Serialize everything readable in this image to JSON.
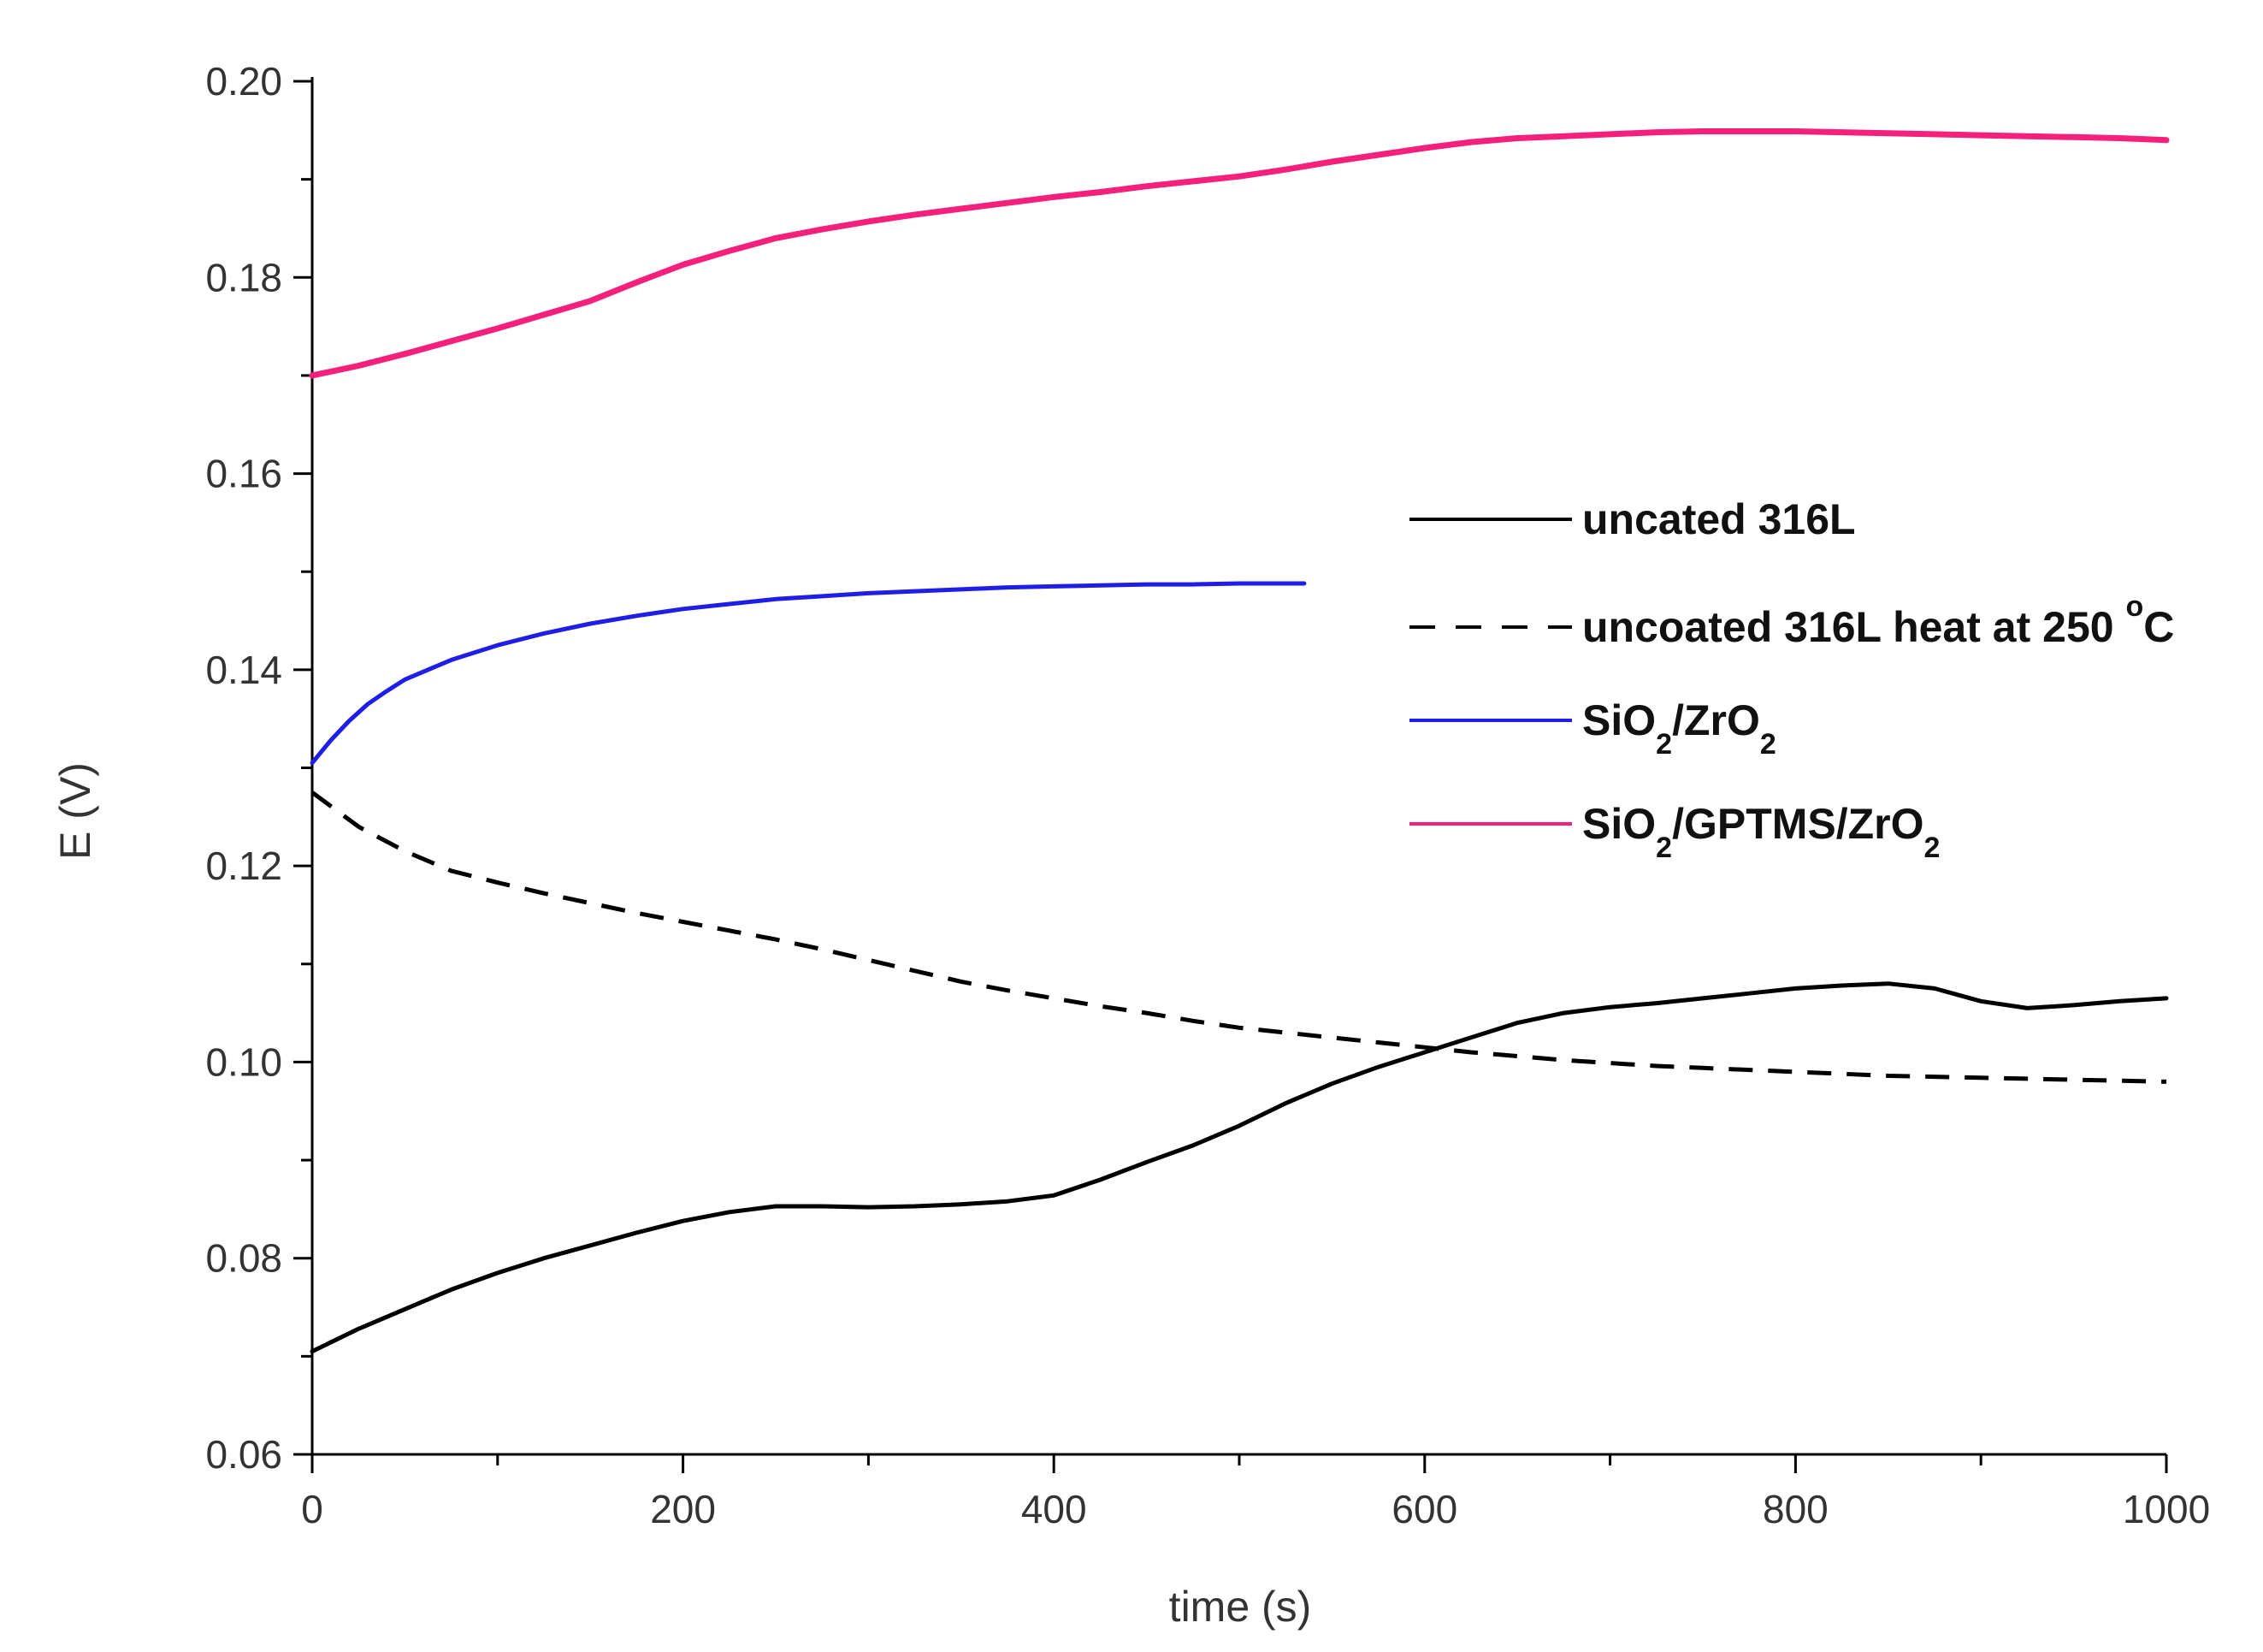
{
  "chart_data": {
    "type": "line",
    "title": "",
    "xlabel": "time (s)",
    "ylabel": "E (V)",
    "xlim": [
      0,
      1000
    ],
    "ylim": [
      0.06,
      0.2
    ],
    "x_ticks": [
      0,
      200,
      400,
      600,
      800,
      1000
    ],
    "x_tick_labels": [
      "0",
      "200",
      "400",
      "600",
      "800",
      "1000"
    ],
    "y_ticks": [
      0.06,
      0.08,
      0.1,
      0.12,
      0.14,
      0.16,
      0.18,
      0.2
    ],
    "y_tick_labels": [
      "0.06",
      "0.08",
      "0.10",
      "0.12",
      "0.14",
      "0.16",
      "0.18",
      "0.20"
    ],
    "grid": false,
    "legend_position": "right",
    "series": [
      {
        "name": "uncated 316L",
        "legend": {
          "parts": [
            {
              "t": "uncated 316L"
            }
          ]
        },
        "color": "#000000",
        "dash": "solid",
        "x": [
          0,
          25,
          50,
          75,
          100,
          125,
          150,
          175,
          200,
          225,
          250,
          275,
          300,
          325,
          350,
          375,
          400,
          425,
          450,
          475,
          500,
          525,
          550,
          575,
          600,
          625,
          650,
          675,
          700,
          725,
          750,
          775,
          800,
          825,
          850,
          875,
          900,
          925,
          950,
          975,
          1000
        ],
        "y": [
          0.0705,
          0.0728,
          0.0748,
          0.0768,
          0.0785,
          0.08,
          0.0813,
          0.0826,
          0.0838,
          0.0847,
          0.0853,
          0.0853,
          0.0852,
          0.0853,
          0.0855,
          0.0858,
          0.0864,
          0.088,
          0.0898,
          0.0915,
          0.0935,
          0.0958,
          0.0978,
          0.0995,
          0.101,
          0.1025,
          0.104,
          0.105,
          0.1056,
          0.106,
          0.1065,
          0.107,
          0.1075,
          0.1078,
          0.108,
          0.1075,
          0.1062,
          0.1055,
          0.1058,
          0.1062,
          0.1065
        ]
      },
      {
        "name": "uncoated 316L heat at 250 oC",
        "legend": {
          "parts": [
            {
              "t": "uncoated 316L heat at 250 "
            },
            {
              "t": "o",
              "sup": true
            },
            {
              "t": "C"
            }
          ]
        },
        "color": "#000000",
        "dash": "dashed",
        "x": [
          0,
          25,
          50,
          75,
          100,
          125,
          150,
          175,
          200,
          225,
          250,
          275,
          300,
          325,
          350,
          375,
          400,
          425,
          450,
          475,
          500,
          525,
          550,
          575,
          600,
          625,
          650,
          675,
          700,
          725,
          750,
          775,
          800,
          825,
          850,
          875,
          900,
          925,
          950,
          975,
          1000
        ],
        "y": [
          0.1275,
          0.124,
          0.1215,
          0.1195,
          0.1183,
          0.1172,
          0.1162,
          0.1152,
          0.1143,
          0.1134,
          0.1125,
          0.1115,
          0.1104,
          0.1093,
          0.1082,
          0.1073,
          0.1065,
          0.1057,
          0.105,
          0.1042,
          0.1035,
          0.103,
          0.1025,
          0.102,
          0.1015,
          0.101,
          0.1006,
          0.1002,
          0.0999,
          0.0996,
          0.0994,
          0.0992,
          0.099,
          0.0988,
          0.0986,
          0.0985,
          0.0984,
          0.0983,
          0.0982,
          0.0981,
          0.098
        ]
      },
      {
        "name": "SiO2/ZrO2",
        "legend": {
          "parts": [
            {
              "t": "SiO"
            },
            {
              "t": "2",
              "sub": true
            },
            {
              "t": "/ZrO"
            },
            {
              "t": "2",
              "sub": true
            }
          ]
        },
        "color": "#1e1ee6",
        "dash": "solid",
        "x": [
          0,
          10,
          20,
          30,
          40,
          50,
          75,
          100,
          125,
          150,
          175,
          200,
          225,
          250,
          275,
          300,
          325,
          350,
          375,
          400,
          425,
          450,
          475,
          500,
          535
        ],
        "y": [
          0.1305,
          0.1328,
          0.1348,
          0.1365,
          0.1378,
          0.139,
          0.141,
          0.1425,
          0.1437,
          0.1447,
          0.1455,
          0.1462,
          0.1467,
          0.1472,
          0.1475,
          0.1478,
          0.148,
          0.1482,
          0.1484,
          0.1485,
          0.1486,
          0.1487,
          0.1487,
          0.1488,
          0.1488
        ]
      },
      {
        "name": "SiO2/GPTMS/ZrO2",
        "legend": {
          "parts": [
            {
              "t": "SiO"
            },
            {
              "t": "2",
              "sub": true
            },
            {
              "t": "/GPTMS/ZrO"
            },
            {
              "t": "2",
              "sub": true
            }
          ]
        },
        "color": "#f5207c",
        "dash": "solid",
        "x": [
          0,
          25,
          50,
          75,
          100,
          125,
          150,
          175,
          200,
          225,
          250,
          275,
          300,
          325,
          350,
          375,
          400,
          425,
          450,
          475,
          500,
          525,
          550,
          575,
          600,
          625,
          650,
          675,
          700,
          725,
          750,
          775,
          800,
          825,
          850,
          875,
          900,
          925,
          950,
          975,
          1000
        ],
        "y": [
          0.17,
          0.171,
          0.1722,
          0.1735,
          0.1748,
          0.1762,
          0.1776,
          0.1795,
          0.1813,
          0.1827,
          0.184,
          0.1849,
          0.1857,
          0.1864,
          0.187,
          0.1876,
          0.1882,
          0.1887,
          0.1893,
          0.1898,
          0.1903,
          0.191,
          0.1918,
          0.1925,
          0.1932,
          0.1938,
          0.1942,
          0.1944,
          0.1946,
          0.1948,
          0.1949,
          0.1949,
          0.1949,
          0.1948,
          0.1947,
          0.1946,
          0.1945,
          0.1944,
          0.1943,
          0.1942,
          0.194
        ]
      }
    ]
  }
}
